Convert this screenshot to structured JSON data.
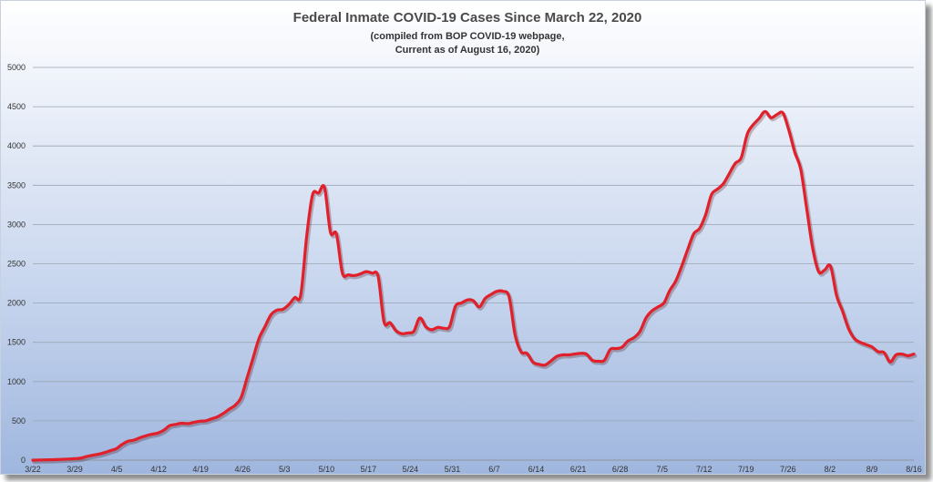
{
  "chart_data": {
    "type": "line",
    "title": "Federal Inmate COVID-19 Cases Since March 22, 2020",
    "subtitle_lines": [
      "(compiled from BOP COVID-19 webpage,",
      "Current as of August 16, 2020)"
    ],
    "xlabel": "",
    "ylabel": "",
    "x_tick_labels": [
      "3/22",
      "3/29",
      "4/5",
      "4/12",
      "4/19",
      "4/26",
      "5/3",
      "5/10",
      "5/17",
      "5/24",
      "5/31",
      "6/7",
      "6/14",
      "6/21",
      "6/28",
      "7/5",
      "7/12",
      "7/19",
      "7/26",
      "8/2",
      "8/9",
      "8/16"
    ],
    "y_ticks": [
      0,
      500,
      1000,
      1500,
      2000,
      2500,
      3000,
      3500,
      4000,
      4500,
      5000
    ],
    "ylim": [
      0,
      5000
    ],
    "grid": true,
    "line_color": "#e0202a",
    "series": [
      {
        "values": [
          0,
          2,
          3,
          5,
          7,
          10,
          14,
          18,
          25,
          45,
          62,
          75,
          95,
          120,
          145,
          200,
          240,
          255,
          285,
          310,
          330,
          345,
          380,
          440,
          455,
          470,
          465,
          480,
          495,
          500,
          525,
          550,
          595,
          650,
          700,
          800,
          1050,
          1300,
          1550,
          1700,
          1850,
          1910,
          1920,
          1980,
          2070,
          2100,
          2850,
          3380,
          3400,
          3470,
          2900,
          2880,
          2380,
          2360,
          2350,
          2370,
          2400,
          2380,
          2340,
          1760,
          1750,
          1650,
          1610,
          1620,
          1640,
          1810,
          1700,
          1660,
          1690,
          1680,
          1700,
          1960,
          2000,
          2040,
          2030,
          1950,
          2060,
          2110,
          2150,
          2150,
          2080,
          1600,
          1380,
          1360,
          1250,
          1220,
          1210,
          1260,
          1320,
          1340,
          1340,
          1350,
          1360,
          1350,
          1270,
          1260,
          1270,
          1410,
          1420,
          1440,
          1520,
          1560,
          1640,
          1810,
          1900,
          1950,
          2000,
          2160,
          2280,
          2470,
          2680,
          2880,
          2950,
          3120,
          3380,
          3450,
          3520,
          3650,
          3780,
          3850,
          4150,
          4270,
          4350,
          4440,
          4360,
          4400,
          4420,
          4200,
          3920,
          3700,
          3200,
          2700,
          2400,
          2420,
          2470,
          2100,
          1900,
          1680,
          1550,
          1500,
          1470,
          1440,
          1380,
          1370,
          1250,
          1340,
          1350,
          1330,
          1350
        ]
      }
    ]
  }
}
